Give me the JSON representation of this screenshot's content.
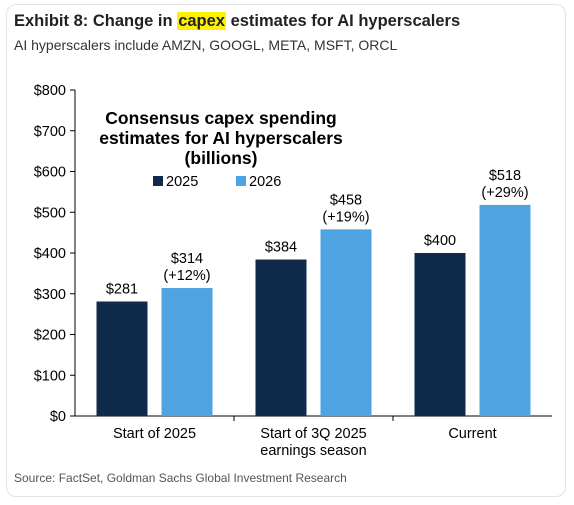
{
  "header": {
    "title_prefix": "Exhibit 8: Change in ",
    "title_highlight": "capex",
    "title_suffix": " estimates for AI hyperscalers",
    "subtitle": "AI hyperscalers include AMZN, GOOGL, META, MSFT, ORCL"
  },
  "footer": {
    "source": "Source: FactSet, Goldman Sachs Global Investment Research"
  },
  "colors": {
    "highlight": "#fff200",
    "series_2025": "#0f2a4a",
    "series_2026": "#4fa3e0"
  },
  "chart_data": {
    "type": "bar",
    "title_lines": [
      "Consensus capex spending",
      "estimates for AI hyperscalers",
      "(billions)"
    ],
    "categories": [
      [
        "Start of 2025"
      ],
      [
        "Start of 3Q 2025",
        "earnings season"
      ],
      [
        "Current"
      ]
    ],
    "series": [
      {
        "name": "2025",
        "values": [
          281,
          384,
          400
        ],
        "labels": [
          [
            "$281"
          ],
          [
            "$384"
          ],
          [
            "$400"
          ]
        ]
      },
      {
        "name": "2026",
        "values": [
          314,
          458,
          518
        ],
        "labels": [
          [
            "$314",
            "(+12%)"
          ],
          [
            "$458",
            "(+19%)"
          ],
          [
            "$518",
            "(+29%)"
          ]
        ]
      }
    ],
    "ylim": [
      0,
      800
    ],
    "yticks": [
      0,
      100,
      200,
      300,
      400,
      500,
      600,
      700,
      800
    ],
    "ytick_labels": [
      "$0",
      "$100",
      "$200",
      "$300",
      "$400",
      "$500",
      "$600",
      "$700",
      "$800"
    ],
    "legend_position": "top-left",
    "grid": false
  }
}
